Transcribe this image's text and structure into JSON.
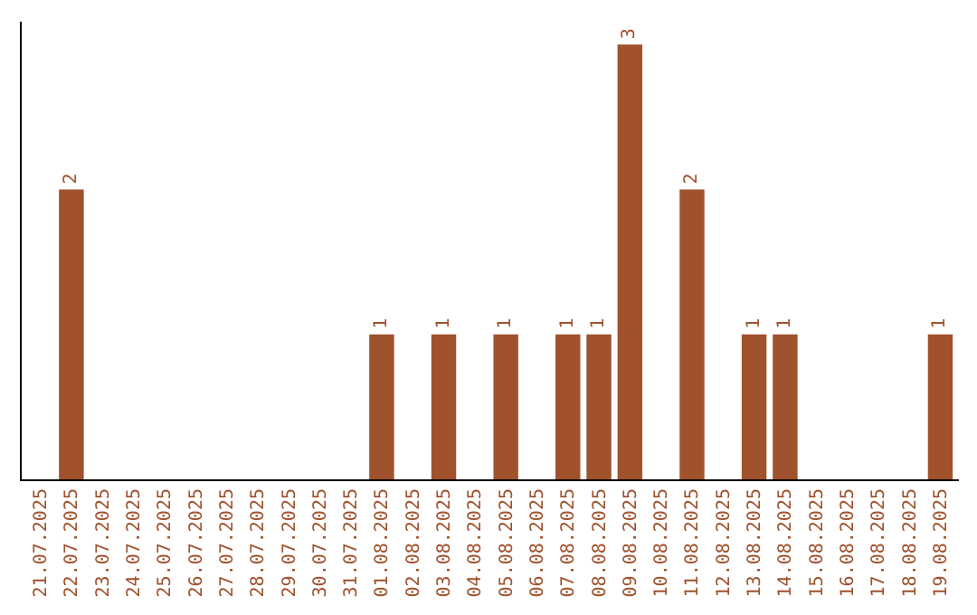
{
  "chart_data": {
    "type": "bar",
    "categories": [
      "21.07.2025",
      "22.07.2025",
      "23.07.2025",
      "24.07.2025",
      "25.07.2025",
      "26.07.2025",
      "27.07.2025",
      "28.07.2025",
      "29.07.2025",
      "30.07.2025",
      "31.07.2025",
      "01.08.2025",
      "02.08.2025",
      "03.08.2025",
      "04.08.2025",
      "05.08.2025",
      "06.08.2025",
      "07.08.2025",
      "08.08.2025",
      "09.08.2025",
      "10.08.2025",
      "11.08.2025",
      "12.08.2025",
      "13.08.2025",
      "14.08.2025",
      "15.08.2025",
      "16.08.2025",
      "17.08.2025",
      "18.08.2025",
      "19.08.2025"
    ],
    "values": [
      0,
      2,
      0,
      0,
      0,
      0,
      0,
      0,
      0,
      0,
      0,
      1,
      0,
      1,
      0,
      1,
      0,
      1,
      1,
      3,
      0,
      2,
      0,
      1,
      1,
      0,
      0,
      0,
      0,
      1
    ],
    "value_labels": [
      null,
      "2",
      null,
      null,
      null,
      null,
      null,
      null,
      null,
      null,
      null,
      "1",
      null,
      "1",
      null,
      "1",
      null,
      "1",
      "1",
      "3",
      null,
      "2",
      null,
      "1",
      "1",
      null,
      null,
      null,
      null,
      "1"
    ],
    "color": "#a0522d"
  }
}
